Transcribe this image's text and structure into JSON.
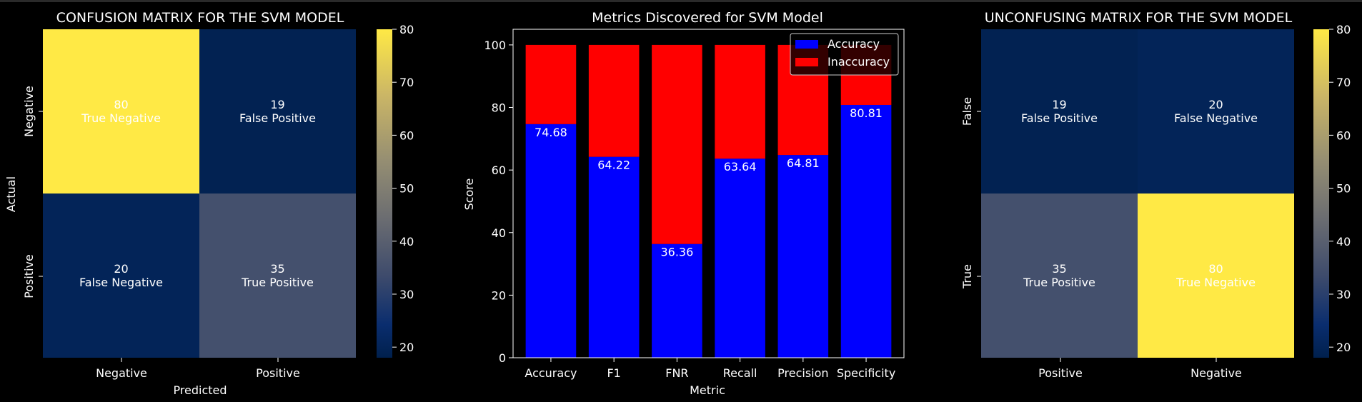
{
  "chart_data": [
    {
      "type": "heatmap",
      "title": "CONFUSION MATRIX FOR THE SVM MODEL",
      "xlabel": "Predicted",
      "ylabel": "Actual",
      "x_categories": [
        "Negative",
        "Positive"
      ],
      "y_categories": [
        "Negative",
        "Positive"
      ],
      "values": [
        [
          80,
          19
        ],
        [
          20,
          35
        ]
      ],
      "cell_labels": [
        [
          "True Negative",
          "False Positive"
        ],
        [
          "False Negative",
          "True Positive"
        ]
      ],
      "colormap": "cividis",
      "colorbar": {
        "min": 18,
        "max": 80,
        "ticks": [
          "80",
          "70",
          "60",
          "50",
          "40",
          "30",
          "20"
        ]
      }
    },
    {
      "type": "bar",
      "stacked": true,
      "title": "Metrics Discovered for SVM Model",
      "xlabel": "Metric",
      "ylabel": "Score",
      "categories": [
        "Accuracy",
        "F1",
        "FNR",
        "Recall",
        "Precision",
        "Specificity"
      ],
      "series": [
        {
          "name": "Accuracy",
          "color": "#0000ff",
          "values": [
            74.68,
            64.22,
            36.36,
            63.64,
            64.81,
            80.81
          ]
        },
        {
          "name": "Inaccuracy",
          "color": "#ff0000",
          "values": [
            25.32,
            35.78,
            63.64,
            36.36,
            35.19,
            19.19
          ]
        }
      ],
      "data_labels": [
        "74.68",
        "64.22",
        "36.36",
        "63.64",
        "64.81",
        "80.81"
      ],
      "ylim": [
        0,
        105
      ],
      "yticks": [
        "0",
        "20",
        "40",
        "60",
        "80",
        "100"
      ],
      "legend": "top-right"
    },
    {
      "type": "heatmap",
      "title": "UNCONFUSING MATRIX FOR THE SVM MODEL",
      "xlabel": "",
      "ylabel": "",
      "x_categories": [
        "Positive",
        "Negative"
      ],
      "y_categories": [
        "False",
        "True"
      ],
      "values": [
        [
          19,
          20
        ],
        [
          35,
          80
        ]
      ],
      "cell_labels": [
        [
          "False Positive",
          "False Negative"
        ],
        [
          "True Positive",
          "True Negative"
        ]
      ],
      "colormap": "cividis",
      "colorbar": {
        "min": 18,
        "max": 80,
        "ticks": [
          "80",
          "70",
          "60",
          "50",
          "40",
          "30",
          "20"
        ]
      }
    }
  ]
}
